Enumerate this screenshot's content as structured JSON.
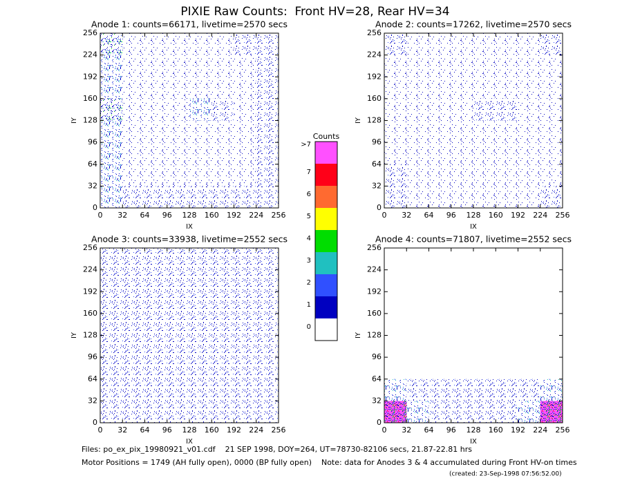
{
  "title": "PIXIE Raw Counts:  Front HV=28, Rear HV=34",
  "colorbar": {
    "title": "Counts",
    "ticks": [
      0,
      1,
      2,
      3,
      4,
      5,
      6,
      7,
      {
        "value": 8,
        "label": ">7"
      }
    ],
    "colors": [
      "#ffffff",
      "#0000c0",
      "#3050ff",
      "#20c0c0",
      "#00dd00",
      "#ffff00",
      "#ff6a30",
      "#ff0018",
      "#ff50ff"
    ]
  },
  "chart_data": [
    {
      "type": "heatmap",
      "title": "Anode 1: counts=66171, livetime=2570 secs",
      "xlabel": "IX",
      "ylabel": "IY",
      "xlim": [
        0,
        256
      ],
      "ylim": [
        0,
        256
      ],
      "xticks": [
        0,
        32,
        64,
        96,
        128,
        160,
        192,
        224,
        256
      ],
      "yticks": [
        0,
        32,
        64,
        96,
        128,
        160,
        192,
        224,
        256
      ],
      "values": [
        [
          4,
          1,
          1,
          1,
          1,
          1,
          2,
          2
        ],
        [
          3,
          1,
          1,
          1,
          1,
          1,
          1,
          2
        ],
        [
          3,
          1,
          1,
          1,
          1,
          1,
          1,
          2
        ],
        [
          4,
          1,
          1,
          1,
          3,
          2,
          1,
          2
        ],
        [
          3,
          1,
          1,
          1,
          1,
          1,
          1,
          2
        ],
        [
          3,
          1,
          1,
          1,
          1,
          1,
          1,
          2
        ],
        [
          3,
          1,
          1,
          1,
          1,
          1,
          1,
          2
        ],
        [
          3,
          2,
          2,
          2,
          2,
          2,
          2,
          2
        ]
      ]
    },
    {
      "type": "heatmap",
      "title": "Anode 2: counts=17262, livetime=2570 secs",
      "xlabel": "IX",
      "ylabel": "IY",
      "xlim": [
        0,
        256
      ],
      "ylim": [
        0,
        256
      ],
      "xticks": [
        0,
        32,
        64,
        96,
        128,
        160,
        192,
        224,
        256
      ],
      "yticks": [
        0,
        32,
        64,
        96,
        128,
        160,
        192,
        224,
        256
      ],
      "values": [
        [
          2,
          1,
          1,
          1,
          1,
          1,
          1,
          2
        ],
        [
          1,
          1,
          1,
          1,
          1,
          1,
          1,
          1
        ],
        [
          1,
          1,
          1,
          1,
          1,
          1,
          1,
          1
        ],
        [
          1,
          1,
          1,
          1,
          2,
          2,
          1,
          1
        ],
        [
          1,
          1,
          1,
          1,
          1,
          1,
          1,
          1
        ],
        [
          1,
          1,
          1,
          1,
          1,
          1,
          1,
          1
        ],
        [
          2,
          1,
          1,
          1,
          1,
          1,
          1,
          1
        ],
        [
          2,
          1,
          1,
          1,
          1,
          1,
          1,
          2
        ]
      ]
    },
    {
      "type": "heatmap",
      "title": "Anode 3: counts=33938, livetime=2552 secs",
      "xlabel": "IX",
      "ylabel": "IY",
      "xlim": [
        0,
        256
      ],
      "ylim": [
        0,
        256
      ],
      "xticks": [
        0,
        32,
        64,
        96,
        128,
        160,
        192,
        224,
        256
      ],
      "yticks": [
        0,
        32,
        64,
        96,
        128,
        160,
        192,
        224,
        256
      ],
      "values": [
        [
          2,
          2,
          2,
          2,
          2,
          2,
          2,
          2
        ],
        [
          2,
          2,
          2,
          2,
          2,
          2,
          2,
          2
        ],
        [
          2,
          2,
          2,
          2,
          2,
          2,
          2,
          2
        ],
        [
          2,
          2,
          2,
          2,
          2,
          2,
          2,
          2
        ],
        [
          2,
          2,
          2,
          2,
          2,
          2,
          2,
          2
        ],
        [
          2,
          2,
          2,
          2,
          2,
          2,
          2,
          2
        ],
        [
          2,
          2,
          2,
          2,
          2,
          2,
          2,
          2
        ],
        [
          2,
          2,
          2,
          2,
          2,
          2,
          2,
          2
        ]
      ]
    },
    {
      "type": "heatmap",
      "title": "Anode 4: counts=71807, livetime=2552 secs",
      "xlabel": "IX",
      "ylabel": "IY",
      "xlim": [
        0,
        256
      ],
      "ylim": [
        0,
        256
      ],
      "xticks": [
        0,
        32,
        64,
        96,
        128,
        160,
        192,
        224,
        256
      ],
      "yticks": [
        0,
        32,
        64,
        96,
        128,
        160,
        192,
        224,
        256
      ],
      "values": [
        [
          0,
          0,
          0,
          0,
          0,
          0,
          0,
          0
        ],
        [
          0,
          0,
          0,
          0,
          0,
          0,
          0,
          0
        ],
        [
          0,
          0,
          0,
          0,
          0,
          0,
          0,
          0
        ],
        [
          0,
          0,
          0,
          0,
          0,
          0,
          0,
          0
        ],
        [
          0,
          0,
          0,
          0,
          0,
          0,
          0,
          0
        ],
        [
          0,
          0,
          0,
          0,
          0,
          0,
          0,
          0
        ],
        [
          3,
          2,
          2,
          2,
          2,
          2,
          2,
          3
        ],
        [
          8,
          3,
          2,
          2,
          2,
          2,
          3,
          8
        ]
      ]
    }
  ],
  "footer": [
    "Files: po_ex_pix_19980921_v01.cdf    21 SEP 1998, DOY=264, UT=78730-82106 secs, 21.87-22.81 hrs",
    "Motor Positions = 1749 (AH fully open), 0000 (BP fully open)    Note: data for Anodes 3 & 4 accumulated during Front HV-on times",
    "(created: 23-Sep-1998 07:56:52.00)"
  ]
}
